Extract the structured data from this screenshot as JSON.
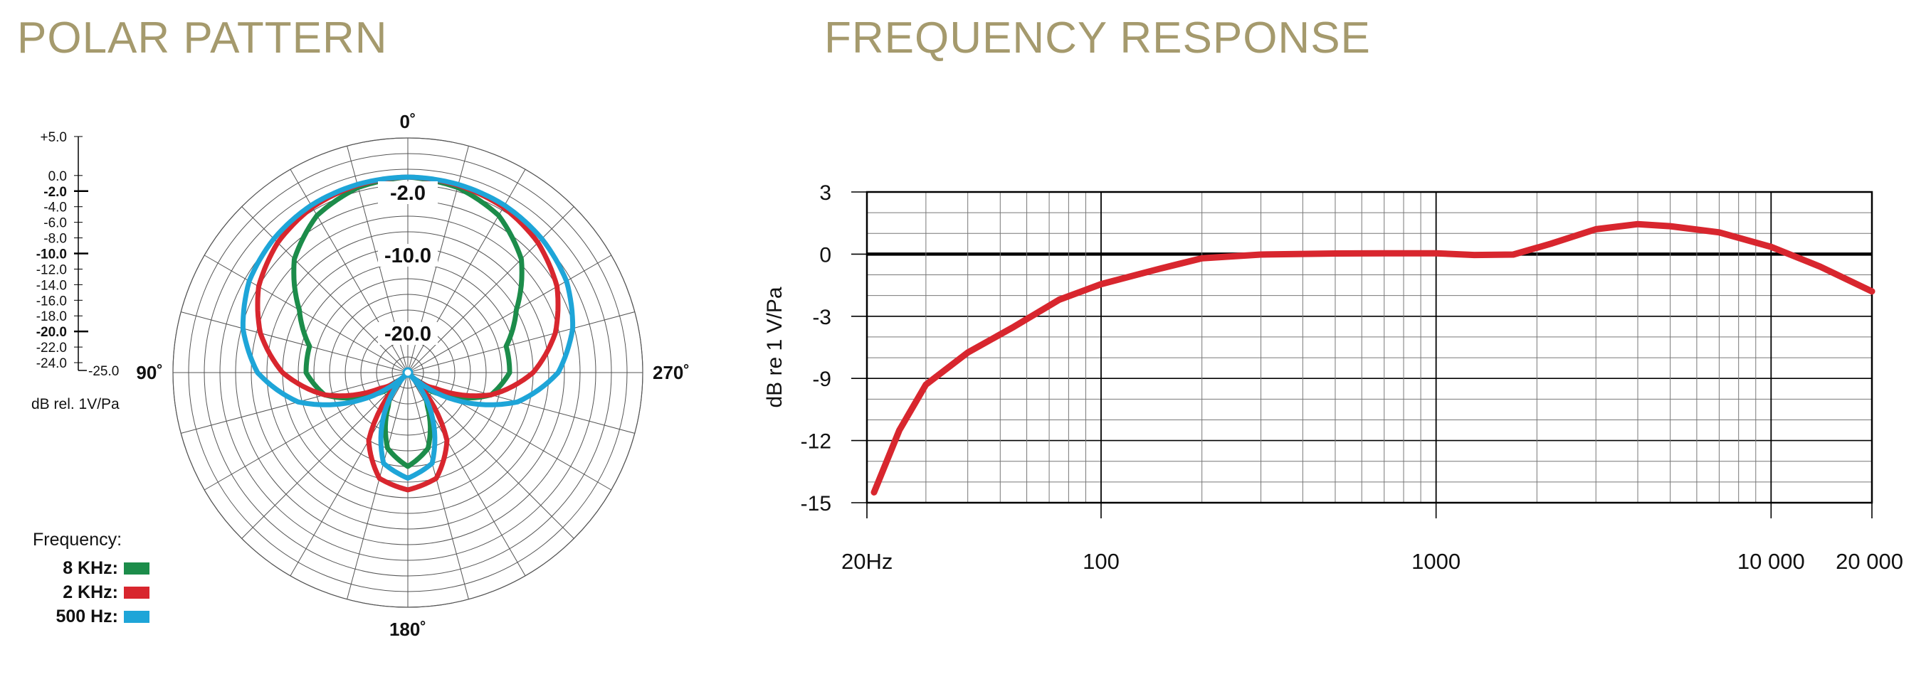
{
  "titles": {
    "polar": "POLAR PATTERN",
    "frequency": "FREQUENCY RESPONSE"
  },
  "polar": {
    "angle_labels": [
      "0˚",
      "90˚",
      "180˚",
      "270˚"
    ],
    "ring_labels": [
      "-2.0",
      "-10.0",
      "-20.0"
    ],
    "scale_labels": [
      "+5.0",
      "0.0",
      "-2.0",
      "-4.0",
      "-6.0",
      "-8.0",
      "-10.0",
      "-12.0",
      "-14.0",
      "-16.0",
      "-18.0",
      "-20.0",
      "-22.0",
      "-24.0",
      "-25.0"
    ],
    "scale_bold": [
      "-2.0",
      "-10.0",
      "-20.0"
    ],
    "unit": "dB rel. 1V/Pa",
    "legend": {
      "heading": "Frequency:",
      "items": [
        {
          "label": "8 KHz:",
          "color": "#1c8c4a"
        },
        {
          "label": "2 KHz:",
          "color": "#d8262e"
        },
        {
          "label": "500 Hz:",
          "color": "#1ea5d8"
        }
      ]
    }
  },
  "chart_data": [
    {
      "type": "polar",
      "title": "POLAR PATTERN",
      "radial_unit": "dB rel. 1V/Pa",
      "radial_range": [
        -25,
        5
      ],
      "angles_deg": [
        0,
        15,
        30,
        45,
        60,
        75,
        90,
        105,
        120,
        135,
        150,
        165,
        180,
        195,
        210,
        225,
        240,
        255,
        270,
        285,
        300,
        315,
        330,
        345,
        360
      ],
      "series": [
        {
          "name": "8 KHz",
          "color": "#1c8c4a",
          "values_db": [
            0,
            -0.5,
            -1.8,
            -4.5,
            -9,
            -12,
            -12,
            -14,
            -19,
            -23,
            -20,
            -15,
            -13,
            -15,
            -20,
            -23,
            -19,
            -14,
            -12,
            -12,
            -9,
            -4.5,
            -1.8,
            -0.5,
            0
          ]
        },
        {
          "name": "2 KHz",
          "color": "#d8262e",
          "values_db": [
            0,
            -0.2,
            -0.6,
            -1.5,
            -3,
            -5.5,
            -9,
            -14,
            -21,
            -24,
            -15,
            -11,
            -10,
            -11,
            -15,
            -24,
            -21,
            -14,
            -9,
            -5.5,
            -3,
            -1.5,
            -0.6,
            -0.2,
            0
          ]
        },
        {
          "name": "500 Hz",
          "color": "#1ea5d8",
          "values_db": [
            0,
            -0.1,
            -0.3,
            -0.8,
            -1.6,
            -3.2,
            -5.8,
            -10.5,
            -18,
            -25,
            -19,
            -13,
            -11.5,
            -13,
            -19,
            -25,
            -18,
            -10.5,
            -5.8,
            -3.2,
            -1.6,
            -0.8,
            -0.3,
            -0.1,
            0
          ]
        }
      ]
    },
    {
      "type": "line",
      "title": "FREQUENCY RESPONSE",
      "xlabel": "",
      "ylabel": "dB re 1 V/Pa",
      "xscale": "log",
      "xlim": [
        20,
        20000
      ],
      "x_tick_labels": [
        "20Hz",
        "100",
        "1000",
        "10 000",
        "20 000"
      ],
      "x_ticks": [
        20,
        100,
        1000,
        10000,
        20000
      ],
      "y_tick_labels": [
        "3",
        "0",
        "-3",
        "-9",
        "-12",
        "-15"
      ],
      "series": [
        {
          "name": "Response",
          "color": "#d8262e",
          "x": [
            21,
            25,
            30,
            40,
            55,
            75,
            100,
            150,
            200,
            300,
            500,
            700,
            1000,
            1300,
            1700,
            2200,
            3000,
            4000,
            5000,
            7000,
            10000,
            14000,
            20000
          ],
          "y": [
            -14.5,
            -11.5,
            -9.3,
            -6.5,
            -4,
            -2.2,
            -1.45,
            -0.7,
            -0.2,
            -0.02,
            0.03,
            0.04,
            0.04,
            -0.04,
            -0.02,
            0.5,
            1.2,
            1.45,
            1.35,
            1.05,
            0.35,
            -0.6,
            -1.8
          ]
        }
      ]
    }
  ]
}
